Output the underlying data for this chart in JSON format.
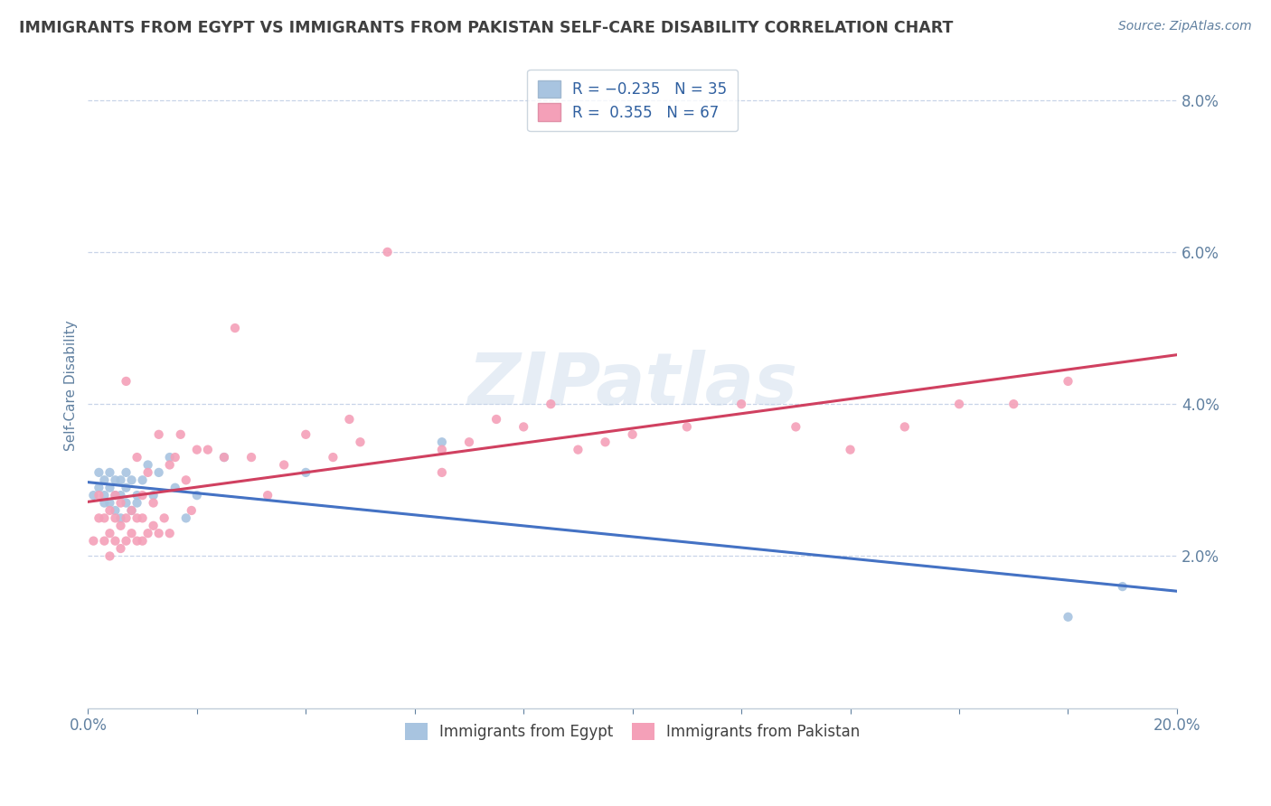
{
  "title": "IMMIGRANTS FROM EGYPT VS IMMIGRANTS FROM PAKISTAN SELF-CARE DISABILITY CORRELATION CHART",
  "source": "Source: ZipAtlas.com",
  "ylabel": "Self-Care Disability",
  "xlim": [
    0.0,
    0.2
  ],
  "ylim": [
    0.0,
    0.085
  ],
  "ytick_labels_right": [
    "2.0%",
    "4.0%",
    "6.0%",
    "8.0%"
  ],
  "yticks_right": [
    0.02,
    0.04,
    0.06,
    0.08
  ],
  "egypt_color": "#a8c4e0",
  "egypt_line_color": "#4472c4",
  "pakistan_color": "#f4a0b8",
  "pakistan_line_color": "#d04060",
  "background_color": "#ffffff",
  "grid_color": "#c8d4e8",
  "title_color": "#404040",
  "axis_color": "#6080a0",
  "watermark": "ZIPatlas",
  "egypt_x": [
    0.001,
    0.002,
    0.002,
    0.003,
    0.003,
    0.003,
    0.004,
    0.004,
    0.004,
    0.005,
    0.005,
    0.005,
    0.006,
    0.006,
    0.006,
    0.007,
    0.007,
    0.007,
    0.008,
    0.008,
    0.009,
    0.009,
    0.01,
    0.011,
    0.012,
    0.013,
    0.015,
    0.016,
    0.018,
    0.02,
    0.025,
    0.04,
    0.065,
    0.18,
    0.19
  ],
  "egypt_y": [
    0.028,
    0.029,
    0.031,
    0.027,
    0.028,
    0.03,
    0.027,
    0.029,
    0.031,
    0.026,
    0.028,
    0.03,
    0.025,
    0.028,
    0.03,
    0.027,
    0.029,
    0.031,
    0.026,
    0.03,
    0.027,
    0.028,
    0.03,
    0.032,
    0.028,
    0.031,
    0.033,
    0.029,
    0.025,
    0.028,
    0.033,
    0.031,
    0.035,
    0.012,
    0.016
  ],
  "pakistan_x": [
    0.001,
    0.002,
    0.002,
    0.003,
    0.003,
    0.004,
    0.004,
    0.004,
    0.005,
    0.005,
    0.005,
    0.006,
    0.006,
    0.006,
    0.007,
    0.007,
    0.007,
    0.008,
    0.008,
    0.009,
    0.009,
    0.009,
    0.01,
    0.01,
    0.01,
    0.011,
    0.011,
    0.012,
    0.012,
    0.013,
    0.013,
    0.014,
    0.015,
    0.015,
    0.016,
    0.017,
    0.018,
    0.019,
    0.02,
    0.022,
    0.025,
    0.027,
    0.03,
    0.033,
    0.036,
    0.04,
    0.045,
    0.048,
    0.05,
    0.055,
    0.065,
    0.065,
    0.07,
    0.075,
    0.08,
    0.085,
    0.09,
    0.095,
    0.1,
    0.11,
    0.12,
    0.13,
    0.14,
    0.15,
    0.16,
    0.17,
    0.18
  ],
  "pakistan_y": [
    0.022,
    0.025,
    0.028,
    0.022,
    0.025,
    0.02,
    0.023,
    0.026,
    0.022,
    0.025,
    0.028,
    0.021,
    0.024,
    0.027,
    0.022,
    0.025,
    0.043,
    0.023,
    0.026,
    0.022,
    0.025,
    0.033,
    0.022,
    0.025,
    0.028,
    0.023,
    0.031,
    0.024,
    0.027,
    0.023,
    0.036,
    0.025,
    0.023,
    0.032,
    0.033,
    0.036,
    0.03,
    0.026,
    0.034,
    0.034,
    0.033,
    0.05,
    0.033,
    0.028,
    0.032,
    0.036,
    0.033,
    0.038,
    0.035,
    0.06,
    0.031,
    0.034,
    0.035,
    0.038,
    0.037,
    0.04,
    0.034,
    0.035,
    0.036,
    0.037,
    0.04,
    0.037,
    0.034,
    0.037,
    0.04,
    0.04,
    0.043
  ]
}
